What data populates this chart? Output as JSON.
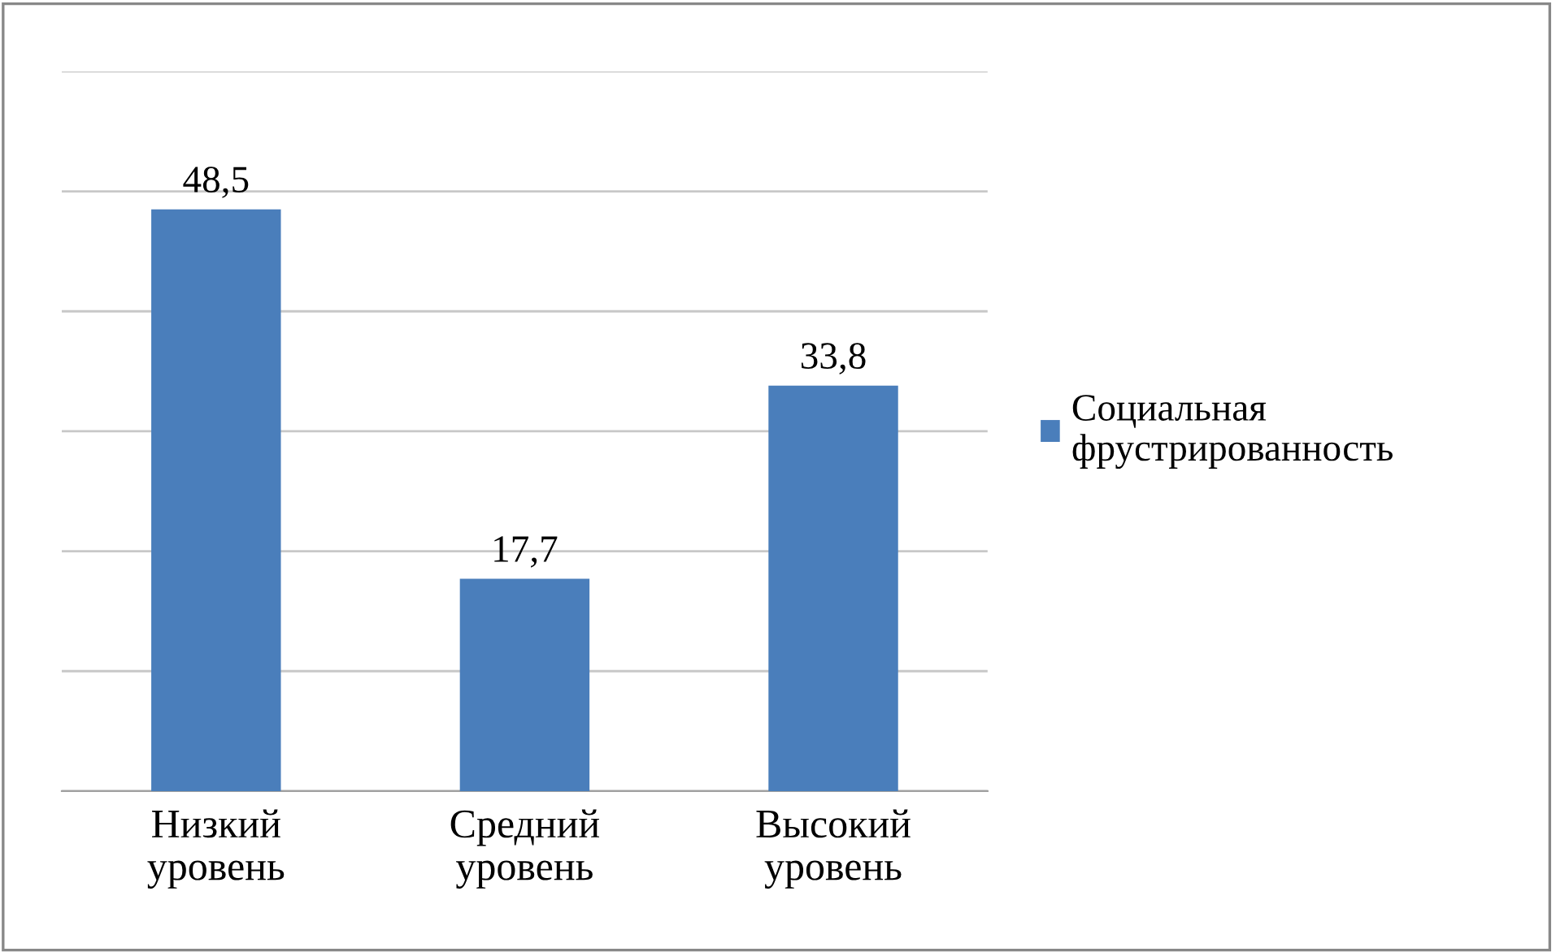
{
  "chart_data": {
    "type": "bar",
    "categories": [
      "Низкий\nуровень",
      "Средний\nуровень",
      "Высокий\nуровень"
    ],
    "series": [
      {
        "name": "Социальная\nфрустрированность",
        "color": "#4a7ebb",
        "values": [
          48.5,
          17.7,
          33.8
        ],
        "value_labels": [
          "48,5",
          "17,7",
          "33,8"
        ]
      }
    ],
    "ylim": [
      0,
      60
    ],
    "yticks": [
      {
        "value": 0,
        "label": null
      },
      {
        "value": 10,
        "label": null
      },
      {
        "value": 20,
        "label": null
      },
      {
        "value": 30,
        "label": null
      },
      {
        "value": 40,
        "label": null
      },
      {
        "value": 50,
        "label": null
      },
      {
        "value": 60,
        "label": null
      }
    ],
    "tick_labels": "x",
    "grid": "y",
    "legend": "right"
  }
}
